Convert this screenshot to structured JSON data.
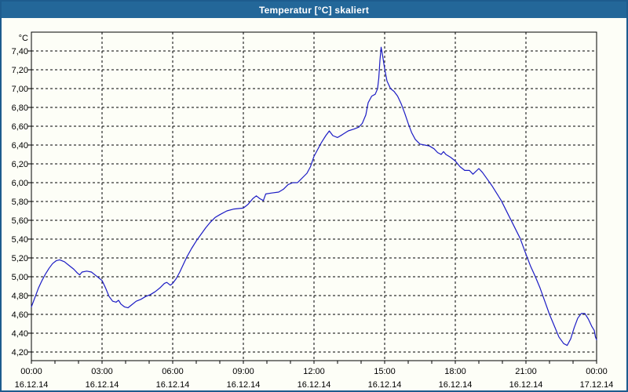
{
  "colors": {
    "titlebar": "#236799",
    "frame": "#1d5c8e",
    "background": "#fdfef7",
    "line": "#1b1bc4",
    "grid": "#000000",
    "axis": "#000000",
    "text": "#000000",
    "title_text": "#ffffff"
  },
  "chart_data": {
    "type": "line",
    "title": "Temperatur [°C] skaliert",
    "ylabel": "°C",
    "xlim_hours": [
      0,
      24
    ],
    "ylim": [
      4.108,
      7.6
    ],
    "grid": "dashed",
    "legend": "none",
    "minor_x_step_hours": 1,
    "yticks": [
      {
        "value": 7.4,
        "label": "7,40"
      },
      {
        "value": 7.2,
        "label": "7,20"
      },
      {
        "value": 7.0,
        "label": "7,00"
      },
      {
        "value": 6.8,
        "label": "6,80"
      },
      {
        "value": 6.6,
        "label": "6,60"
      },
      {
        "value": 6.4,
        "label": "6,40"
      },
      {
        "value": 6.2,
        "label": "6,20"
      },
      {
        "value": 6.0,
        "label": "6,00"
      },
      {
        "value": 5.8,
        "label": "5,80"
      },
      {
        "value": 5.6,
        "label": "5,60"
      },
      {
        "value": 5.4,
        "label": "5,40"
      },
      {
        "value": 5.2,
        "label": "5,20"
      },
      {
        "value": 5.0,
        "label": "5,00"
      },
      {
        "value": 4.8,
        "label": "4,80"
      },
      {
        "value": 4.6,
        "label": "4,60"
      },
      {
        "value": 4.4,
        "label": "4,40"
      },
      {
        "value": 4.2,
        "label": "4,20"
      }
    ],
    "xticks": [
      {
        "hour": 0,
        "time": "00:00",
        "date": "16.12.14"
      },
      {
        "hour": 3,
        "time": "03:00",
        "date": "16.12.14"
      },
      {
        "hour": 6,
        "time": "06:00",
        "date": "16.12.14"
      },
      {
        "hour": 9,
        "time": "09:00",
        "date": "16.12.14"
      },
      {
        "hour": 12,
        "time": "12:00",
        "date": "16.12.14"
      },
      {
        "hour": 15,
        "time": "15:00",
        "date": "16.12.14"
      },
      {
        "hour": 18,
        "time": "18:00",
        "date": "16.12.14"
      },
      {
        "hour": 21,
        "time": "21:00",
        "date": "16.12.14"
      },
      {
        "hour": 24,
        "time": "00:00",
        "date": "17.12.14"
      }
    ],
    "series": [
      {
        "name": "Temperatur [°C]",
        "color": "#1b1bc4",
        "points": [
          [
            0,
            4.68
          ],
          [
            0.15,
            4.78
          ],
          [
            0.3,
            4.88
          ],
          [
            0.45,
            4.96
          ],
          [
            0.6,
            5.03
          ],
          [
            0.75,
            5.09
          ],
          [
            0.9,
            5.14
          ],
          [
            1.05,
            5.17
          ],
          [
            1.2,
            5.18
          ],
          [
            1.4,
            5.16
          ],
          [
            1.6,
            5.12
          ],
          [
            1.8,
            5.08
          ],
          [
            1.95,
            5.04
          ],
          [
            2.05,
            5.02
          ],
          [
            2.15,
            5.05
          ],
          [
            2.35,
            5.06
          ],
          [
            2.55,
            5.05
          ],
          [
            2.75,
            5.01
          ],
          [
            3,
            4.96
          ],
          [
            3.15,
            4.88
          ],
          [
            3.3,
            4.79
          ],
          [
            3.45,
            4.74
          ],
          [
            3.6,
            4.73
          ],
          [
            3.7,
            4.75
          ],
          [
            3.8,
            4.71
          ],
          [
            3.95,
            4.68
          ],
          [
            4.1,
            4.67
          ],
          [
            4.25,
            4.7
          ],
          [
            4.45,
            4.74
          ],
          [
            4.65,
            4.76
          ],
          [
            4.85,
            4.79
          ],
          [
            5.05,
            4.81
          ],
          [
            5.25,
            4.84
          ],
          [
            5.45,
            4.88
          ],
          [
            5.65,
            4.93
          ],
          [
            5.75,
            4.94
          ],
          [
            5.9,
            4.91
          ],
          [
            6,
            4.93
          ],
          [
            6.15,
            4.98
          ],
          [
            6.3,
            5.05
          ],
          [
            6.45,
            5.13
          ],
          [
            6.6,
            5.21
          ],
          [
            6.8,
            5.3
          ],
          [
            7,
            5.38
          ],
          [
            7.2,
            5.45
          ],
          [
            7.4,
            5.52
          ],
          [
            7.6,
            5.58
          ],
          [
            7.8,
            5.63
          ],
          [
            8,
            5.66
          ],
          [
            8.3,
            5.7
          ],
          [
            8.6,
            5.72
          ],
          [
            9,
            5.73
          ],
          [
            9.2,
            5.77
          ],
          [
            9.4,
            5.83
          ],
          [
            9.55,
            5.86
          ],
          [
            9.7,
            5.83
          ],
          [
            9.85,
            5.81
          ],
          [
            9.95,
            5.88
          ],
          [
            10.2,
            5.89
          ],
          [
            10.5,
            5.9
          ],
          [
            10.7,
            5.93
          ],
          [
            10.9,
            5.98
          ],
          [
            11.1,
            6
          ],
          [
            11.3,
            6
          ],
          [
            11.5,
            6.05
          ],
          [
            11.7,
            6.1
          ],
          [
            11.85,
            6.17
          ],
          [
            12,
            6.28
          ],
          [
            12.15,
            6.35
          ],
          [
            12.3,
            6.42
          ],
          [
            12.5,
            6.5
          ],
          [
            12.65,
            6.55
          ],
          [
            12.8,
            6.5
          ],
          [
            13,
            6.48
          ],
          [
            13.2,
            6.51
          ],
          [
            13.45,
            6.55
          ],
          [
            13.7,
            6.57
          ],
          [
            13.9,
            6.59
          ],
          [
            14.05,
            6.63
          ],
          [
            14.2,
            6.72
          ],
          [
            14.3,
            6.85
          ],
          [
            14.45,
            6.92
          ],
          [
            14.6,
            6.94
          ],
          [
            14.7,
            7
          ],
          [
            14.75,
            7.11
          ],
          [
            14.8,
            7.3
          ],
          [
            14.85,
            7.44
          ],
          [
            14.92,
            7.34
          ],
          [
            15,
            7.21
          ],
          [
            15.1,
            7.08
          ],
          [
            15.25,
            7
          ],
          [
            15.4,
            6.97
          ],
          [
            15.55,
            6.92
          ],
          [
            15.7,
            6.84
          ],
          [
            15.85,
            6.74
          ],
          [
            16,
            6.63
          ],
          [
            16.15,
            6.53
          ],
          [
            16.3,
            6.46
          ],
          [
            16.5,
            6.41
          ],
          [
            16.7,
            6.4
          ],
          [
            16.9,
            6.39
          ],
          [
            17.1,
            6.36
          ],
          [
            17.25,
            6.32
          ],
          [
            17.4,
            6.3
          ],
          [
            17.5,
            6.33
          ],
          [
            17.6,
            6.3
          ],
          [
            17.8,
            6.27
          ],
          [
            18,
            6.23
          ],
          [
            18.2,
            6.17
          ],
          [
            18.4,
            6.13
          ],
          [
            18.6,
            6.13
          ],
          [
            18.75,
            6.09
          ],
          [
            19,
            6.15
          ],
          [
            19.15,
            6.11
          ],
          [
            19.35,
            6.04
          ],
          [
            19.55,
            5.97
          ],
          [
            19.75,
            5.89
          ],
          [
            19.95,
            5.81
          ],
          [
            20.15,
            5.71
          ],
          [
            20.35,
            5.61
          ],
          [
            20.55,
            5.51
          ],
          [
            20.75,
            5.41
          ],
          [
            21,
            5.24
          ],
          [
            21.2,
            5.11
          ],
          [
            21.4,
            5
          ],
          [
            21.6,
            4.88
          ],
          [
            21.8,
            4.74
          ],
          [
            22,
            4.6
          ],
          [
            22.2,
            4.48
          ],
          [
            22.4,
            4.36
          ],
          [
            22.6,
            4.29
          ],
          [
            22.75,
            4.27
          ],
          [
            22.9,
            4.34
          ],
          [
            23.05,
            4.46
          ],
          [
            23.2,
            4.56
          ],
          [
            23.35,
            4.61
          ],
          [
            23.5,
            4.61
          ],
          [
            23.65,
            4.55
          ],
          [
            23.8,
            4.47
          ],
          [
            23.9,
            4.43
          ],
          [
            23.95,
            4.36
          ],
          [
            24,
            4.33
          ]
        ]
      }
    ]
  }
}
